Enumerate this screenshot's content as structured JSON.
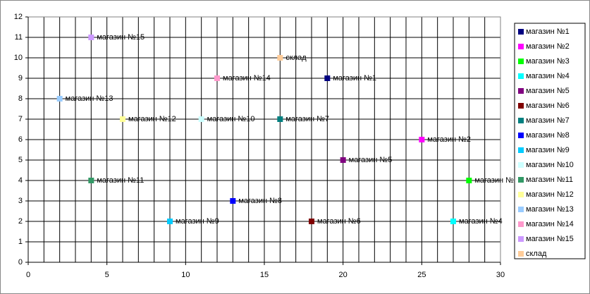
{
  "chart_data": {
    "type": "scatter",
    "xlim": [
      0,
      30
    ],
    "xticks": [
      0,
      5,
      10,
      15,
      20,
      25,
      30
    ],
    "xgrid_step": 1,
    "ylim": [
      0,
      12
    ],
    "yticks": [
      0,
      1,
      2,
      3,
      4,
      5,
      6,
      7,
      8,
      9,
      10,
      11,
      12
    ],
    "grid": true,
    "legend": "right",
    "series": [
      {
        "name": "магазин №1",
        "color": "#000080",
        "x": [
          19
        ],
        "values": [
          9
        ]
      },
      {
        "name": "магазин №2",
        "color": "#FF00FF",
        "x": [
          25
        ],
        "values": [
          6
        ]
      },
      {
        "name": "магазин №3",
        "color": "#00FF00",
        "x": [
          28
        ],
        "values": [
          4
        ]
      },
      {
        "name": "магазин №4",
        "color": "#00FFFF",
        "x": [
          27
        ],
        "values": [
          2
        ]
      },
      {
        "name": "магазин №5",
        "color": "#800080",
        "x": [
          20
        ],
        "values": [
          5
        ]
      },
      {
        "name": "магазин №6",
        "color": "#800000",
        "x": [
          18
        ],
        "values": [
          2
        ]
      },
      {
        "name": "магазин №7",
        "color": "#008080",
        "x": [
          16
        ],
        "values": [
          7
        ]
      },
      {
        "name": "магазин №8",
        "color": "#0000FF",
        "x": [
          13
        ],
        "values": [
          3
        ]
      },
      {
        "name": "магазин №9",
        "color": "#00CCFF",
        "x": [
          9
        ],
        "values": [
          2
        ]
      },
      {
        "name": "магазин №10",
        "color": "#CCFFFF",
        "x": [
          11
        ],
        "values": [
          7
        ]
      },
      {
        "name": "магазин №11",
        "color": "#339966",
        "x": [
          4
        ],
        "values": [
          4
        ]
      },
      {
        "name": "магазин №12",
        "color": "#FFFF99",
        "x": [
          6
        ],
        "values": [
          7
        ]
      },
      {
        "name": "магазин №13",
        "color": "#99CCFF",
        "x": [
          2
        ],
        "values": [
          8
        ]
      },
      {
        "name": "магазин №14",
        "color": "#FF99CC",
        "x": [
          12
        ],
        "values": [
          9
        ]
      },
      {
        "name": "магазин №15",
        "color": "#CC99FF",
        "x": [
          4
        ],
        "values": [
          11
        ]
      },
      {
        "name": "склад",
        "color": "#FFCC99",
        "x": [
          16
        ],
        "values": [
          10
        ]
      }
    ]
  }
}
